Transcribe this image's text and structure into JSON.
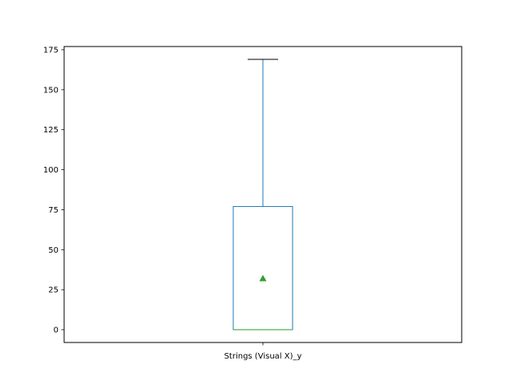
{
  "chart_data": {
    "type": "box",
    "categories": [
      "Strings (Visual X)_y"
    ],
    "boxes": [
      {
        "label": "Strings (Visual X)_y",
        "whisker_low": 0,
        "q1": 0,
        "median": 0,
        "q3": 77,
        "whisker_high": 169,
        "mean": 32
      }
    ],
    "ylim": [
      -8,
      177
    ],
    "yticks": [
      0,
      25,
      50,
      75,
      100,
      125,
      150,
      175
    ],
    "grid": false,
    "colors": {
      "box": "#1f77b4",
      "median": "#2ca02c",
      "mean_marker": "#2ca02c",
      "cap": "#000000",
      "axes": "#000000"
    }
  }
}
